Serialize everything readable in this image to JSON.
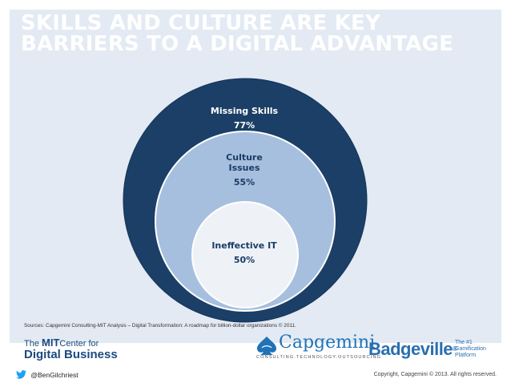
{
  "title": {
    "line1": "SKILLS AND CULTURE ARE KEY",
    "line2": "BARRIERS TO A DIGITAL ADVANTAGE"
  },
  "rings": {
    "outer": {
      "label": "Missing Skills",
      "value": "77%",
      "color": "#1b3f66"
    },
    "middle": {
      "label_line1": "Culture",
      "label_line2": "Issues",
      "value": "55%",
      "color": "#a6bfde"
    },
    "inner": {
      "label": "Ineffective IT",
      "value": "50%",
      "color": "#eef2f7"
    }
  },
  "sources": "Sources: Capgemini Consulting-MIT Analysis – Digital Transformation: A roadmap for billion-dollar organizations © 2011.",
  "logos": {
    "mit": {
      "prefix": "The",
      "mit": "MIT",
      "suffix": "Center for",
      "line2": "Digital Business"
    },
    "capgemini": {
      "word": "Capgemini",
      "tagline": "CONSULTING.TECHNOLOGY.OUTSOURCING"
    },
    "badgeville": {
      "word": "Badgeville",
      "tm": "®",
      "tag1": "The #1",
      "tag2": "Gamification",
      "tag3": "Platform"
    }
  },
  "footer": {
    "twitter_handle": "@BenGilchriest",
    "copyright": "Copyright, Capgemini © 2013. All rights reserved."
  },
  "colors": {
    "panel": "#e3eaf3",
    "accent": "#1b3f66",
    "twitter": "#1da1f2"
  }
}
